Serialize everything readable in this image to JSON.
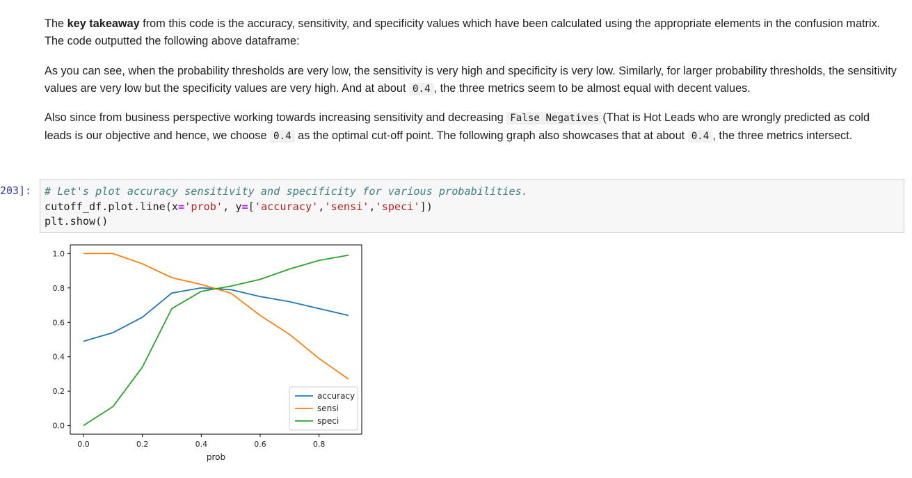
{
  "markdown": {
    "p1": {
      "a": "The ",
      "b": "key takeaway",
      "c": " from this code is the accuracy, sensitivity, and specificity values which have been calculated using the appropriate elements in the confusion matrix. The code outputted the following above dataframe:"
    },
    "p2": {
      "a": "As you can see, when the probability thresholds are very low, the sensitivity is very high and specificity is very low. Similarly, for larger probability thresholds, the sensitivity values are very low but the specificity values are very high. And at about ",
      "code": "0.4",
      "b": ", the three metrics seem to be almost equal with decent values."
    },
    "p3": {
      "a": "Also since from business perspective working towards increasing sensitivity and decreasing ",
      "code1": "False Negatives",
      "b": "(That is Hot Leads who are wrongly predicted as cold leads is our objective and hence, we choose ",
      "code2": "0.4",
      "c": " as the optimal cut-off point. The following graph also showcases that at about ",
      "code3": "0.4",
      "d": ", the three metrics intersect."
    }
  },
  "cell": {
    "prompt": "203]:",
    "line1": "# Let's plot accuracy sensitivity and specificity for various probabilities.",
    "line2": {
      "a": "cutoff_df.plot.line(x",
      "op1": "=",
      "s1": "'prob'",
      "b": ", y",
      "op2": "=",
      "c": "[",
      "s2": "'accuracy'",
      "d": ",",
      "s3": "'sensi'",
      "e": ",",
      "s4": "'speci'",
      "f": "])"
    },
    "line3": "plt.show()"
  },
  "chart_data": {
    "type": "line",
    "x": [
      0.0,
      0.1,
      0.2,
      0.3,
      0.4,
      0.5,
      0.6,
      0.7,
      0.8,
      0.9
    ],
    "series": [
      {
        "name": "accuracy",
        "color": "#1f77b4",
        "values": [
          0.49,
          0.54,
          0.63,
          0.77,
          0.8,
          0.79,
          0.75,
          0.72,
          0.68,
          0.64
        ]
      },
      {
        "name": "sensi",
        "color": "#ff7f0e",
        "values": [
          1.0,
          1.0,
          0.94,
          0.86,
          0.82,
          0.77,
          0.64,
          0.53,
          0.39,
          0.27
        ]
      },
      {
        "name": "speci",
        "color": "#2ca02c",
        "values": [
          0.0,
          0.11,
          0.34,
          0.68,
          0.78,
          0.81,
          0.85,
          0.91,
          0.96,
          0.99
        ]
      }
    ],
    "xlabel": "prob",
    "ylabel": "",
    "xlim": [
      -0.045,
      0.945
    ],
    "ylim": [
      -0.05,
      1.05
    ],
    "xticks": [
      "0.0",
      "0.2",
      "0.4",
      "0.6",
      "0.8"
    ],
    "yticks": [
      "0.0",
      "0.2",
      "0.4",
      "0.6",
      "0.8",
      "1.0"
    ],
    "legend": "bottom-right",
    "grid": false
  }
}
